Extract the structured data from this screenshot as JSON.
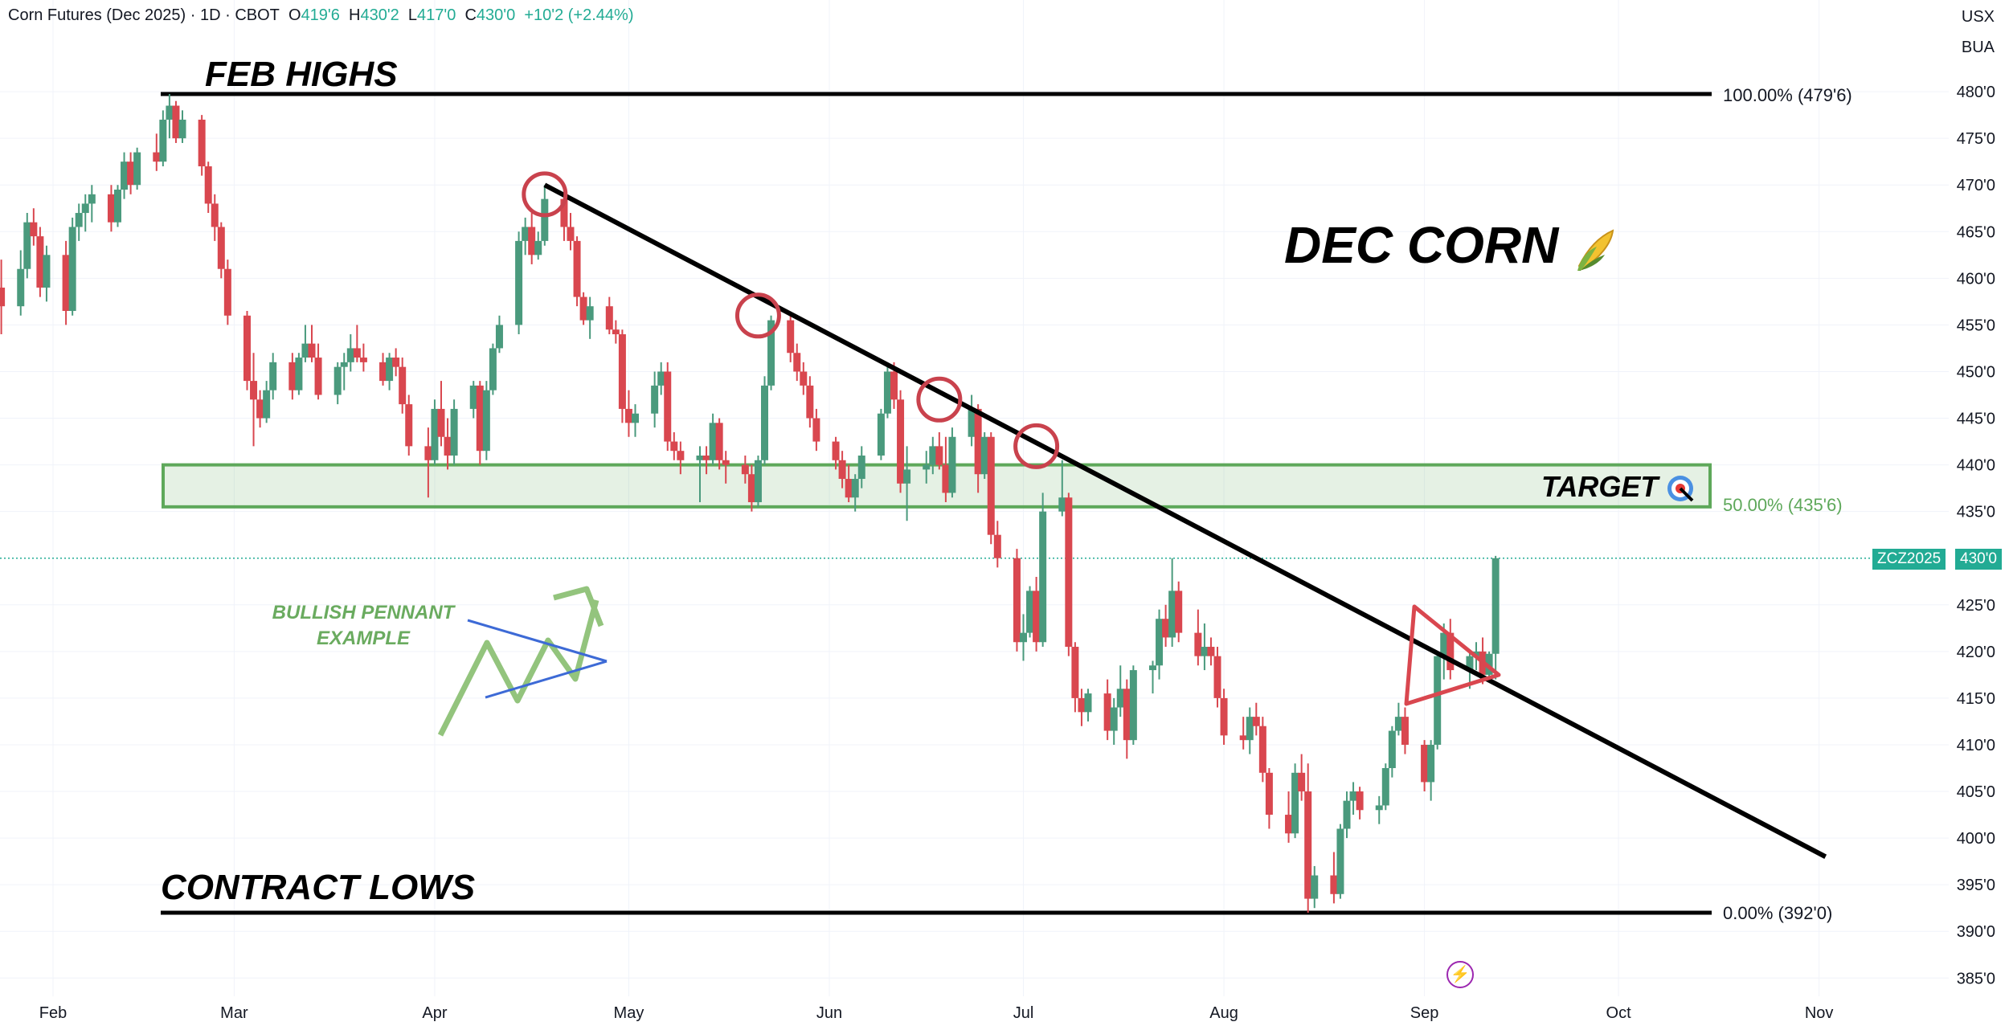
{
  "header": {
    "title": "Corn Futures (Dec 2025) · 1D · CBOT",
    "o_key": "O",
    "o_val": "419'6",
    "h_key": "H",
    "h_val": "430'2",
    "l_key": "L",
    "l_val": "417'0",
    "c_key": "C",
    "c_val": "430'0",
    "change": "+10'2 (+2.44%)"
  },
  "corner": {
    "currency": "USX",
    "unit": "BUA"
  },
  "annotations": {
    "feb_highs": "FEB HIGHS",
    "contract_lows": "CONTRACT LOWS",
    "dec_corn": "DEC CORN",
    "target": "TARGET",
    "pennant_line1": "BULLISH PENNANT",
    "pennant_line2": "EXAMPLE",
    "fib_100": "100.00% (479'6)",
    "fib_50": "50.00% (435'6)",
    "fib_0": "0.00% (392'0)",
    "ticker_tag": "ZCZ2025",
    "price_tag": "430'0",
    "corn_icon": "corn-emoji-icon",
    "target_icon": "bullseye-icon",
    "flash_icon": "lightning-icon"
  },
  "colors": {
    "up": "#4a9a7d",
    "down": "#d9474f",
    "target_zone": "#5ea85a",
    "pennant_example": "#93c47d",
    "pennant_lines": "#3d6ad6",
    "circles": "#c9424d"
  },
  "chart_data": {
    "type": "candlestick",
    "title": "Corn Futures (Dec 2025) · 1D · CBOT",
    "ylim": [
      383.75,
      482.0
    ],
    "y_ticks": [
      "480'0",
      "475'0",
      "470'0",
      "465'0",
      "460'0",
      "455'0",
      "450'0",
      "445'0",
      "440'0",
      "435'0",
      "425'0",
      "420'0",
      "415'0",
      "410'0",
      "405'0",
      "400'0",
      "395'0",
      "390'0",
      "385'0"
    ],
    "x_ticks": [
      "Feb",
      "Mar",
      "Apr",
      "May",
      "Jun",
      "Jul",
      "Aug",
      "Sep",
      "Oct",
      "Nov"
    ],
    "levels": {
      "fib_100": 479.75,
      "fib_50": 435.75,
      "fib_0": 392.0,
      "last_price": 430.0,
      "target_zone": [
        435.5,
        440.0
      ]
    },
    "trendline": {
      "from": [
        "2025-04-18",
        470.0
      ],
      "to": [
        "2025-11-02",
        398.0
      ]
    },
    "touch_points": [
      [
        "2025-04-18",
        469.0
      ],
      [
        "2025-05-21",
        456.0
      ],
      [
        "2025-06-18",
        447.0
      ],
      [
        "2025-07-03",
        442.0
      ]
    ],
    "candles": [
      [
        "2025-01-24",
        459.0,
        462.0,
        454.0,
        457.0
      ],
      [
        "2025-01-27",
        457.0,
        463.0,
        456.0,
        461.0
      ],
      [
        "2025-01-28",
        461.0,
        467.0,
        460.0,
        466.0
      ],
      [
        "2025-01-29",
        466.0,
        467.5,
        463.5,
        464.5
      ],
      [
        "2025-01-30",
        464.5,
        465.5,
        458.0,
        459.0
      ],
      [
        "2025-01-31",
        459.0,
        463.5,
        457.5,
        462.5
      ],
      [
        "2025-02-03",
        462.5,
        464.0,
        455.0,
        456.5
      ],
      [
        "2025-02-04",
        456.5,
        466.5,
        456.0,
        465.5
      ],
      [
        "2025-02-05",
        465.5,
        468.0,
        464.0,
        467.0
      ],
      [
        "2025-02-06",
        467.0,
        469.0,
        465.0,
        468.0
      ],
      [
        "2025-02-07",
        468.0,
        470.0,
        466.0,
        469.0
      ],
      [
        "2025-02-10",
        469.0,
        470.0,
        465.0,
        466.0
      ],
      [
        "2025-02-11",
        466.0,
        470.0,
        465.5,
        469.5
      ],
      [
        "2025-02-12",
        469.5,
        473.5,
        468.5,
        472.5
      ],
      [
        "2025-02-13",
        472.5,
        473.5,
        469.0,
        470.0
      ],
      [
        "2025-02-14",
        470.0,
        474.0,
        469.5,
        473.5
      ],
      [
        "2025-02-17",
        473.5,
        475.5,
        471.5,
        472.5
      ],
      [
        "2025-02-18",
        472.5,
        478.0,
        472.0,
        477.0
      ],
      [
        "2025-02-19",
        477.0,
        479.75,
        475.0,
        478.5
      ],
      [
        "2025-02-20",
        478.5,
        479.0,
        474.5,
        475.0
      ],
      [
        "2025-02-21",
        475.0,
        478.0,
        474.5,
        477.0
      ],
      [
        "2025-02-24",
        477.0,
        477.5,
        471.0,
        472.0
      ],
      [
        "2025-02-25",
        472.0,
        472.5,
        467.0,
        468.0
      ],
      [
        "2025-02-26",
        468.0,
        469.0,
        464.0,
        465.5
      ],
      [
        "2025-02-27",
        465.5,
        466.0,
        460.0,
        461.0
      ],
      [
        "2025-02-28",
        461.0,
        462.0,
        455.0,
        456.0
      ],
      [
        "2025-03-03",
        456.0,
        456.5,
        448.0,
        449.0
      ],
      [
        "2025-03-04",
        449.0,
        452.0,
        442.0,
        447.0
      ],
      [
        "2025-03-05",
        447.0,
        448.0,
        444.0,
        445.0
      ],
      [
        "2025-03-06",
        445.0,
        449.0,
        444.5,
        448.0
      ],
      [
        "2025-03-07",
        448.0,
        452.0,
        447.0,
        451.0
      ],
      [
        "2025-03-10",
        451.0,
        452.0,
        447.0,
        448.0
      ],
      [
        "2025-03-11",
        448.0,
        452.0,
        447.5,
        451.5
      ],
      [
        "2025-03-12",
        451.5,
        455.0,
        451.0,
        453.0
      ],
      [
        "2025-03-13",
        453.0,
        455.0,
        451.0,
        451.5
      ],
      [
        "2025-03-14",
        451.5,
        453.0,
        447.0,
        447.5
      ],
      [
        "2025-03-17",
        447.5,
        451.0,
        446.5,
        450.5
      ],
      [
        "2025-03-18",
        450.5,
        452.0,
        448.0,
        451.0
      ],
      [
        "2025-03-19",
        451.0,
        454.0,
        450.0,
        452.5
      ],
      [
        "2025-03-20",
        452.5,
        455.0,
        451.0,
        451.5
      ],
      [
        "2025-03-21",
        451.5,
        453.0,
        450.0,
        451.0
      ],
      [
        "2025-03-24",
        451.0,
        452.0,
        448.5,
        449.0
      ],
      [
        "2025-03-25",
        449.0,
        452.0,
        448.0,
        451.5
      ],
      [
        "2025-03-26",
        451.5,
        452.5,
        449.5,
        450.5
      ],
      [
        "2025-03-27",
        450.5,
        451.5,
        445.5,
        446.5
      ],
      [
        "2025-03-28",
        446.5,
        447.5,
        441.0,
        442.0
      ],
      [
        "2025-03-31",
        442.0,
        444.0,
        436.5,
        440.5
      ],
      [
        "2025-04-01",
        440.5,
        447.0,
        440.0,
        446.0
      ],
      [
        "2025-04-02",
        446.0,
        449.0,
        442.0,
        443.0
      ],
      [
        "2025-04-03",
        443.0,
        445.0,
        439.5,
        441.0
      ],
      [
        "2025-04-04",
        441.0,
        447.0,
        440.0,
        446.0
      ],
      [
        "2025-04-07",
        446.0,
        449.0,
        445.0,
        448.5
      ],
      [
        "2025-04-08",
        448.5,
        449.0,
        440.0,
        441.5
      ],
      [
        "2025-04-09",
        441.5,
        449.0,
        440.5,
        448.0
      ],
      [
        "2025-04-10",
        448.0,
        453.0,
        447.5,
        452.5
      ],
      [
        "2025-04-11",
        452.5,
        456.0,
        452.0,
        455.0
      ],
      [
        "2025-04-14",
        455.0,
        465.0,
        454.0,
        464.0
      ],
      [
        "2025-04-15",
        464.0,
        466.5,
        462.5,
        465.5
      ],
      [
        "2025-04-16",
        465.5,
        467.0,
        461.5,
        462.5
      ],
      [
        "2025-04-17",
        462.5,
        465.0,
        462.0,
        464.0
      ],
      [
        "2025-04-18",
        464.0,
        470.0,
        463.5,
        468.5
      ],
      [
        "2025-04-21",
        468.5,
        469.0,
        464.0,
        465.5
      ],
      [
        "2025-04-22",
        465.5,
        467.0,
        463.0,
        464.0
      ],
      [
        "2025-04-23",
        464.0,
        464.5,
        457.0,
        458.0
      ],
      [
        "2025-04-24",
        458.0,
        458.5,
        455.0,
        455.5
      ],
      [
        "2025-04-25",
        455.5,
        458.0,
        453.5,
        457.0
      ],
      [
        "2025-04-28",
        457.0,
        458.0,
        454.0,
        454.5
      ],
      [
        "2025-04-29",
        454.5,
        455.5,
        453.0,
        454.0
      ],
      [
        "2025-04-30",
        454.0,
        454.5,
        444.5,
        446.0
      ],
      [
        "2025-05-01",
        446.0,
        448.0,
        443.0,
        444.5
      ],
      [
        "2025-05-02",
        444.5,
        446.5,
        443.0,
        445.5
      ],
      [
        "2025-05-05",
        445.5,
        450.0,
        444.0,
        448.5
      ],
      [
        "2025-05-06",
        448.5,
        451.0,
        447.5,
        450.0
      ],
      [
        "2025-05-07",
        450.0,
        451.0,
        441.5,
        442.5
      ],
      [
        "2025-05-08",
        442.5,
        443.5,
        440.5,
        441.5
      ],
      [
        "2025-05-09",
        441.5,
        442.5,
        439.0,
        440.5
      ],
      [
        "2025-05-12",
        440.5,
        442.0,
        436.0,
        441.0
      ],
      [
        "2025-05-13",
        441.0,
        442.0,
        439.0,
        440.5
      ],
      [
        "2025-05-14",
        440.5,
        445.5,
        440.0,
        444.5
      ],
      [
        "2025-05-15",
        444.5,
        445.0,
        439.5,
        440.5
      ],
      [
        "2025-05-16",
        440.5,
        441.5,
        438.0,
        440.0
      ],
      [
        "2025-05-19",
        440.0,
        441.0,
        438.0,
        439.0
      ],
      [
        "2025-05-20",
        439.0,
        440.0,
        435.0,
        436.0
      ],
      [
        "2025-05-21",
        436.0,
        441.0,
        435.5,
        440.5
      ],
      [
        "2025-05-22",
        440.5,
        449.5,
        440.0,
        448.5
      ],
      [
        "2025-05-23",
        448.5,
        456.0,
        448.0,
        455.5
      ],
      [
        "2025-05-26",
        455.5,
        456.0,
        451.0,
        452.0
      ],
      [
        "2025-05-27",
        452.0,
        453.0,
        449.0,
        450.0
      ],
      [
        "2025-05-28",
        450.0,
        451.0,
        447.5,
        448.5
      ],
      [
        "2025-05-29",
        448.5,
        449.5,
        444.0,
        445.0
      ],
      [
        "2025-05-30",
        445.0,
        446.0,
        441.5,
        442.5
      ],
      [
        "2025-06-02",
        442.5,
        443.0,
        439.5,
        440.5
      ],
      [
        "2025-06-03",
        440.5,
        441.5,
        437.5,
        438.5
      ],
      [
        "2025-06-04",
        438.5,
        440.0,
        436.0,
        436.5
      ],
      [
        "2025-06-05",
        436.5,
        439.0,
        435.0,
        438.5
      ],
      [
        "2025-06-06",
        438.5,
        442.0,
        437.5,
        441.0
      ],
      [
        "2025-06-09",
        441.0,
        446.0,
        440.5,
        445.5
      ],
      [
        "2025-06-10",
        445.5,
        450.5,
        445.0,
        450.0
      ],
      [
        "2025-06-11",
        450.0,
        451.0,
        446.0,
        447.0
      ],
      [
        "2025-06-12",
        447.0,
        448.0,
        437.0,
        438.0
      ],
      [
        "2025-06-13",
        438.0,
        442.0,
        434.0,
        439.5
      ],
      [
        "2025-06-16",
        439.5,
        441.5,
        438.0,
        440.0
      ],
      [
        "2025-06-17",
        440.0,
        443.0,
        439.0,
        442.0
      ],
      [
        "2025-06-18",
        442.0,
        443.5,
        439.5,
        440.0
      ],
      [
        "2025-06-19",
        440.0,
        443.0,
        436.0,
        437.0
      ],
      [
        "2025-06-20",
        437.0,
        444.0,
        436.5,
        443.0
      ],
      [
        "2025-06-23",
        443.0,
        447.5,
        442.0,
        446.0
      ],
      [
        "2025-06-24",
        446.0,
        446.5,
        437.0,
        439.0
      ],
      [
        "2025-06-25",
        439.0,
        443.5,
        438.5,
        443.0
      ],
      [
        "2025-06-26",
        443.0,
        443.5,
        431.5,
        432.5
      ],
      [
        "2025-06-27",
        432.5,
        434.0,
        429.0,
        430.0
      ],
      [
        "2025-06-30",
        430.0,
        431.0,
        420.0,
        421.0
      ],
      [
        "2025-07-01",
        421.0,
        424.0,
        419.0,
        422.0
      ],
      [
        "2025-07-02",
        422.0,
        427.0,
        421.5,
        426.5
      ],
      [
        "2025-07-03",
        426.5,
        428.0,
        420.0,
        421.0
      ],
      [
        "2025-07-04",
        421.0,
        437.0,
        420.5,
        435.0
      ],
      [
        "2025-07-07",
        435.0,
        440.5,
        434.5,
        436.5
      ],
      [
        "2025-07-08",
        436.5,
        437.0,
        419.5,
        420.5
      ],
      [
        "2025-07-09",
        420.5,
        421.0,
        413.5,
        415.0
      ],
      [
        "2025-07-10",
        415.0,
        416.0,
        412.0,
        413.5
      ],
      [
        "2025-07-11",
        413.5,
        416.0,
        412.5,
        415.5
      ],
      [
        "2025-07-14",
        415.5,
        417.0,
        410.5,
        411.5
      ],
      [
        "2025-07-15",
        411.5,
        415.0,
        410.0,
        414.0
      ],
      [
        "2025-07-16",
        414.0,
        418.5,
        413.0,
        416.0
      ],
      [
        "2025-07-17",
        416.0,
        417.0,
        408.5,
        410.5
      ],
      [
        "2025-07-18",
        410.5,
        418.5,
        410.0,
        418.0
      ],
      [
        "2025-07-21",
        418.0,
        419.0,
        415.5,
        418.5
      ],
      [
        "2025-07-22",
        418.5,
        424.5,
        417.0,
        423.5
      ],
      [
        "2025-07-23",
        423.5,
        425.0,
        420.5,
        421.5
      ],
      [
        "2025-07-24",
        421.5,
        430.0,
        420.5,
        426.5
      ],
      [
        "2025-07-25",
        426.5,
        427.5,
        421.0,
        422.0
      ],
      [
        "2025-07-28",
        422.0,
        424.5,
        418.5,
        419.5
      ],
      [
        "2025-07-29",
        419.5,
        423.0,
        418.0,
        420.5
      ],
      [
        "2025-07-30",
        420.5,
        421.5,
        418.5,
        419.5
      ],
      [
        "2025-07-31",
        419.5,
        420.5,
        414.0,
        415.0
      ],
      [
        "2025-08-01",
        415.0,
        416.0,
        410.0,
        411.0
      ],
      [
        "2025-08-04",
        411.0,
        413.0,
        409.5,
        410.5
      ],
      [
        "2025-08-05",
        410.5,
        414.0,
        409.0,
        413.0
      ],
      [
        "2025-08-06",
        413.0,
        414.5,
        411.0,
        412.0
      ],
      [
        "2025-08-07",
        412.0,
        413.0,
        406.0,
        407.0
      ],
      [
        "2025-08-08",
        407.0,
        407.5,
        401.0,
        402.5
      ],
      [
        "2025-08-11",
        402.5,
        405.0,
        399.5,
        400.5
      ],
      [
        "2025-08-12",
        400.5,
        408.0,
        400.0,
        407.0
      ],
      [
        "2025-08-13",
        407.0,
        409.0,
        404.0,
        405.0
      ],
      [
        "2025-08-14",
        405.0,
        408.0,
        392.0,
        393.5
      ],
      [
        "2025-08-15",
        393.5,
        397.0,
        392.5,
        396.0
      ],
      [
        "2025-08-18",
        396.0,
        398.5,
        393.0,
        394.0
      ],
      [
        "2025-08-19",
        394.0,
        401.5,
        393.5,
        401.0
      ],
      [
        "2025-08-20",
        401.0,
        405.0,
        400.0,
        404.0
      ],
      [
        "2025-08-21",
        404.0,
        406.0,
        402.5,
        405.0
      ],
      [
        "2025-08-22",
        405.0,
        405.5,
        402.0,
        403.0
      ],
      [
        "2025-08-25",
        403.0,
        404.5,
        401.5,
        403.5
      ],
      [
        "2025-08-26",
        403.5,
        408.0,
        403.0,
        407.5
      ],
      [
        "2025-08-27",
        407.5,
        412.0,
        406.5,
        411.5
      ],
      [
        "2025-08-28",
        411.5,
        414.5,
        411.0,
        413.0
      ],
      [
        "2025-08-29",
        413.0,
        414.0,
        409.0,
        410.0
      ],
      [
        "2025-09-01",
        410.0,
        410.5,
        405.0,
        406.0
      ],
      [
        "2025-09-02",
        406.0,
        410.5,
        404.0,
        410.0
      ],
      [
        "2025-09-03",
        410.0,
        420.0,
        409.5,
        419.5
      ],
      [
        "2025-09-04",
        419.5,
        423.0,
        417.0,
        422.0
      ],
      [
        "2025-09-05",
        422.0,
        423.5,
        417.0,
        418.0
      ],
      [
        "2025-09-08",
        418.0,
        420.0,
        416.0,
        419.5
      ],
      [
        "2025-09-09",
        419.5,
        421.0,
        418.0,
        420.0
      ],
      [
        "2025-09-10",
        420.0,
        421.5,
        416.5,
        417.5
      ],
      [
        "2025-09-11",
        417.5,
        420.0,
        417.0,
        419.75
      ],
      [
        "2025-09-12",
        419.75,
        430.25,
        417.0,
        430.0
      ]
    ]
  }
}
